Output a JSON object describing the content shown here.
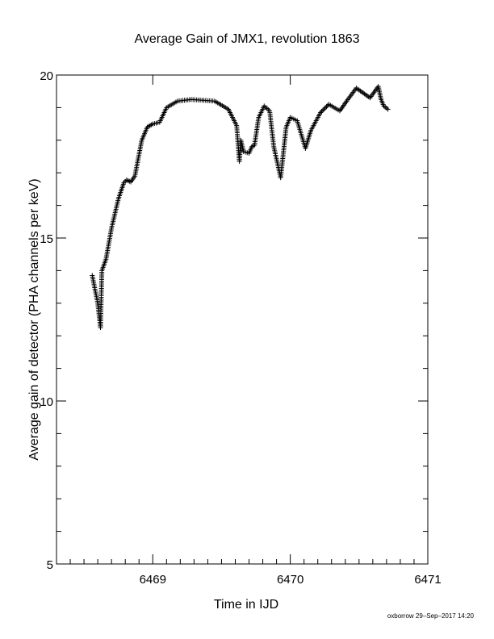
{
  "chart_data": {
    "type": "scatter",
    "title": "Average Gain of JMX1, revolution 1863",
    "xlabel": "Time in IJD",
    "ylabel": "Average gain of detector (PHA channels per keV)",
    "xlim": [
      6468.3,
      6471
    ],
    "ylim": [
      5,
      20
    ],
    "xticks": [
      6469,
      6470,
      6471
    ],
    "xtick_labels": [
      "6469",
      "6470",
      "6471"
    ],
    "yticks": [
      5,
      10,
      15,
      20
    ],
    "ytick_labels": [
      "5",
      "10",
      "15",
      "20"
    ],
    "marker": "+",
    "grid": false,
    "footer": "oxborrow 29–Sep–2017 14:20",
    "anchors": [
      [
        6468.56,
        13.85
      ],
      [
        6468.6,
        13.0
      ],
      [
        6468.62,
        12.25
      ],
      [
        6468.63,
        14.0
      ],
      [
        6468.66,
        14.35
      ],
      [
        6468.7,
        15.3
      ],
      [
        6468.75,
        16.2
      ],
      [
        6468.79,
        16.7
      ],
      [
        6468.81,
        16.78
      ],
      [
        6468.84,
        16.72
      ],
      [
        6468.87,
        16.9
      ],
      [
        6468.92,
        18.0
      ],
      [
        6468.96,
        18.4
      ],
      [
        6469.0,
        18.5
      ],
      [
        6469.05,
        18.55
      ],
      [
        6469.1,
        19.0
      ],
      [
        6469.18,
        19.2
      ],
      [
        6469.28,
        19.25
      ],
      [
        6469.45,
        19.2
      ],
      [
        6469.55,
        18.95
      ],
      [
        6469.61,
        18.45
      ],
      [
        6469.62,
        17.9
      ],
      [
        6469.63,
        17.35
      ],
      [
        6469.64,
        18.0
      ],
      [
        6469.66,
        17.65
      ],
      [
        6469.7,
        17.6
      ],
      [
        6469.72,
        17.8
      ],
      [
        6469.74,
        17.85
      ],
      [
        6469.77,
        18.7
      ],
      [
        6469.81,
        19.05
      ],
      [
        6469.85,
        18.9
      ],
      [
        6469.88,
        17.8
      ],
      [
        6469.93,
        16.85
      ],
      [
        6469.97,
        18.4
      ],
      [
        6470.0,
        18.7
      ],
      [
        6470.05,
        18.6
      ],
      [
        6470.11,
        17.75
      ],
      [
        6470.15,
        18.3
      ],
      [
        6470.22,
        18.85
      ],
      [
        6470.28,
        19.1
      ],
      [
        6470.36,
        18.9
      ],
      [
        6470.41,
        19.2
      ],
      [
        6470.48,
        19.6
      ],
      [
        6470.58,
        19.3
      ],
      [
        6470.64,
        19.65
      ],
      [
        6470.66,
        19.25
      ],
      [
        6470.68,
        19.05
      ],
      [
        6470.71,
        18.95
      ]
    ]
  }
}
